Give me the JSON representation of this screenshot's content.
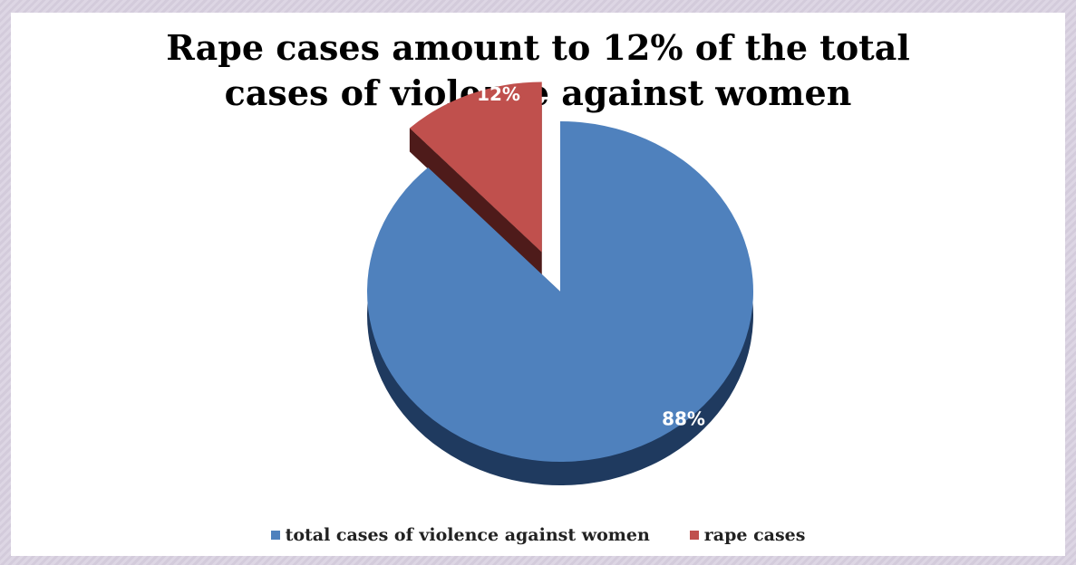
{
  "chart_data": {
    "type": "pie",
    "title_lines": [
      "Rape cases amount to 12% of the total",
      "cases of violence against women"
    ],
    "categories": [
      "total cases of violence against women",
      "rape cases"
    ],
    "values": [
      88,
      12
    ],
    "data_labels": [
      "88%",
      "12%"
    ],
    "colors": [
      "#4f81bd",
      "#c0504d"
    ],
    "side_colors": [
      "#1f3a5f",
      "#4e1b1a"
    ],
    "exploded": [
      false,
      true
    ],
    "legend_position": "bottom",
    "three_d": true
  }
}
